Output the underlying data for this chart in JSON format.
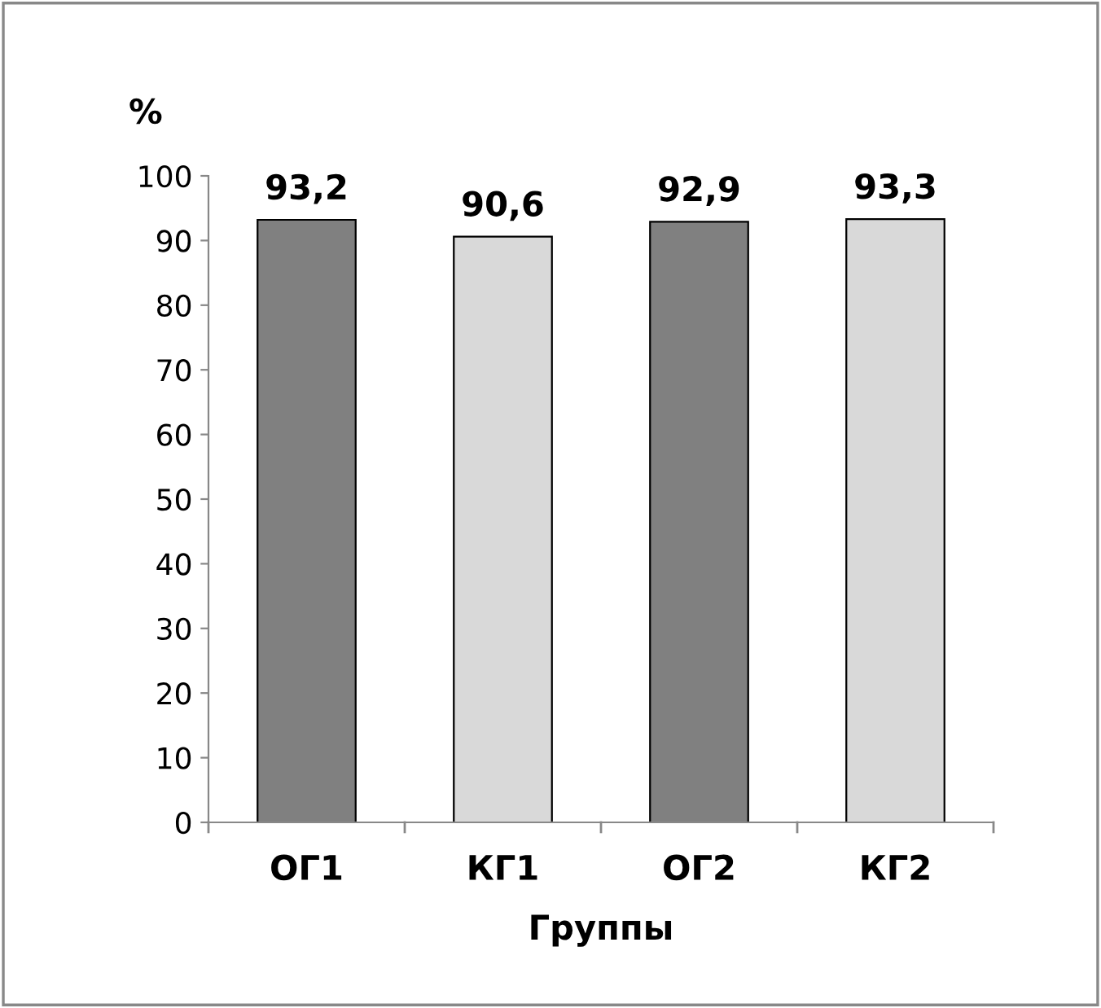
{
  "chart_data": {
    "type": "bar",
    "xlabel": "Группы",
    "ylabel": "%",
    "categories": [
      "ОГ1",
      "КГ1",
      "ОГ2",
      "КГ2"
    ],
    "values": [
      93.2,
      90.6,
      92.9,
      93.3
    ],
    "colors": [
      "#808080",
      "#d9d9d9",
      "#808080",
      "#d9d9d9"
    ],
    "value_labels": [
      "93,2",
      "90,6",
      "92,9",
      "93,3"
    ],
    "ylim": [
      0,
      100
    ],
    "yticks": [
      0,
      10,
      20,
      30,
      40,
      50,
      60,
      70,
      80,
      90,
      100
    ],
    "grid": false,
    "legend": false
  }
}
